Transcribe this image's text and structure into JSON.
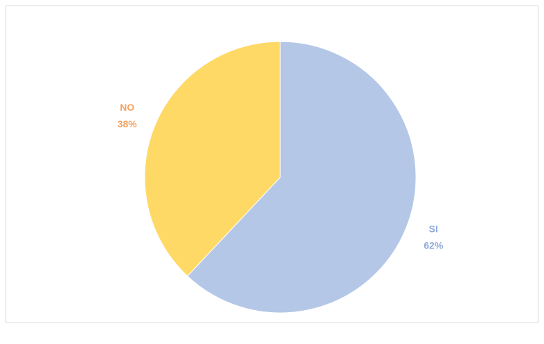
{
  "chart_data": {
    "type": "pie",
    "categories": [
      "SI",
      "NO"
    ],
    "values": [
      62,
      38
    ],
    "value_labels": [
      "62%",
      "38%"
    ],
    "colors": [
      "#b4c7e7",
      "#ffd966"
    ],
    "label_colors": [
      "#8faadc",
      "#f4a261"
    ]
  }
}
